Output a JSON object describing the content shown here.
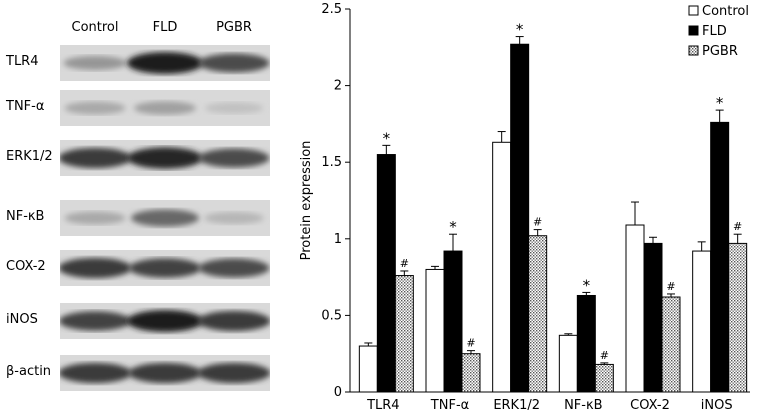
{
  "blot": {
    "lanes": [
      "Control",
      "FLD",
      "PGBR"
    ],
    "rows": [
      {
        "label": "TLR4",
        "intensity": [
          0.35,
          1.0,
          0.75
        ]
      },
      {
        "label": "TNF-α",
        "intensity": [
          0.25,
          0.3,
          0.12
        ]
      },
      {
        "label": "ERK1/2",
        "intensity": [
          0.85,
          0.95,
          0.75
        ]
      },
      {
        "label": "NF-κB",
        "intensity": [
          0.25,
          0.6,
          0.18
        ]
      },
      {
        "label": "COX-2",
        "intensity": [
          0.85,
          0.8,
          0.75
        ]
      },
      {
        "label": "iNOS",
        "intensity": [
          0.8,
          1.0,
          0.85
        ]
      },
      {
        "label": "β-actin",
        "intensity": [
          0.85,
          0.85,
          0.85
        ]
      }
    ]
  },
  "chart_data": {
    "type": "bar",
    "ylabel": "Protein expression",
    "ylim": [
      0,
      2.5
    ],
    "yticks": [
      "0",
      "0.5",
      "1",
      "1.5",
      "2",
      "2.5"
    ],
    "categories": [
      "TLR4",
      "TNF-α",
      "ERK1/2",
      "NF-κB",
      "COX-2",
      "iNOS"
    ],
    "legend_position": "top-right",
    "series": [
      {
        "name": "Control",
        "fill": "#ffffff",
        "values": [
          0.3,
          0.8,
          1.63,
          0.37,
          1.09,
          0.92
        ],
        "errors": [
          0.02,
          0.02,
          0.07,
          0.01,
          0.15,
          0.06
        ],
        "marks": [
          "",
          "",
          "",
          "",
          "",
          ""
        ]
      },
      {
        "name": "FLD",
        "fill": "#000000",
        "values": [
          1.55,
          0.92,
          2.27,
          0.63,
          0.97,
          1.76
        ],
        "errors": [
          0.06,
          0.11,
          0.05,
          0.02,
          0.04,
          0.08
        ],
        "marks": [
          "*",
          "*",
          "*",
          "*",
          "",
          "*"
        ]
      },
      {
        "name": "PGBR",
        "fill": "pattern",
        "values": [
          0.76,
          0.25,
          1.02,
          0.18,
          0.62,
          0.97
        ],
        "errors": [
          0.03,
          0.02,
          0.04,
          0.01,
          0.02,
          0.06
        ],
        "marks": [
          "#",
          "#",
          "#",
          "#",
          "#",
          "#"
        ]
      }
    ]
  }
}
